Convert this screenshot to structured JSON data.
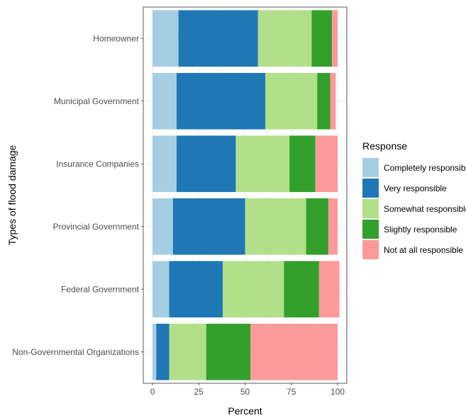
{
  "chart_data": {
    "type": "bar",
    "orientation": "horizontal",
    "stacked": true,
    "title": "",
    "xlabel": "Percent",
    "ylabel": "Types of flood damage",
    "xlim": [
      -5,
      105
    ],
    "x_ticks": [
      0,
      25,
      50,
      75,
      100
    ],
    "grid": true,
    "legend_position": "right",
    "legend_title": "Response",
    "categories": [
      "Homeowner",
      "Municipal Government",
      "Insurance Companies",
      "Provincial Government",
      "Federal Government",
      "Non-Governmental Organizations"
    ],
    "series": [
      {
        "name": "Completely responsible",
        "color": "#a6cee3",
        "values": [
          14,
          13,
          13,
          11,
          9,
          2
        ]
      },
      {
        "name": "Very responsible",
        "color": "#1f78b4",
        "values": [
          43,
          48,
          32,
          39,
          29,
          7
        ]
      },
      {
        "name": "Somewhat responsible",
        "color": "#b2df8a",
        "values": [
          29,
          28,
          29,
          33,
          33,
          20
        ]
      },
      {
        "name": "Slightly responsible",
        "color": "#33a02c",
        "values": [
          11,
          7,
          14,
          12,
          19,
          24
        ]
      },
      {
        "name": "Not at all responsible",
        "color": "#fb9a99",
        "values": [
          3,
          3,
          12,
          5,
          11,
          47
        ]
      }
    ]
  }
}
